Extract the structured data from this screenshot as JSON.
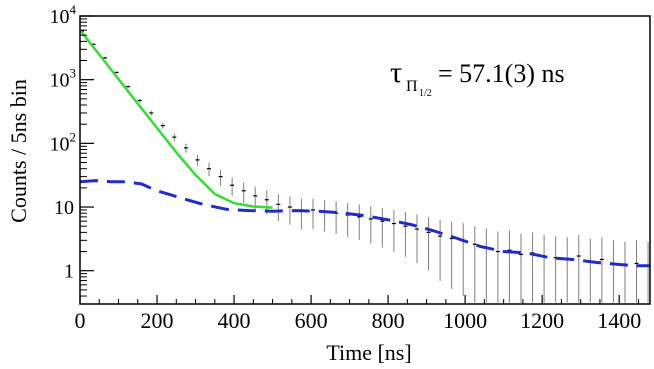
{
  "chart_data": {
    "type": "scatter",
    "xlabel": "Time [ns]",
    "ylabel": "Counts / 5ns bin",
    "xlim": [
      0,
      1480
    ],
    "ylim": [
      0.3,
      10000
    ],
    "y_scale": "log",
    "grid": false,
    "x_ticks": [
      {
        "value": 0,
        "label": "0"
      },
      {
        "value": 200,
        "label": "200"
      },
      {
        "value": 400,
        "label": "400"
      },
      {
        "value": 600,
        "label": "600"
      },
      {
        "value": 800,
        "label": "800"
      },
      {
        "value": 1000,
        "label": "1000"
      },
      {
        "value": 1200,
        "label": "1200"
      },
      {
        "value": 1400,
        "label": "1400"
      }
    ],
    "y_ticks": [
      {
        "value": 1,
        "label": "1"
      },
      {
        "value": 10,
        "label": "10"
      },
      {
        "value": 100,
        "label": "10",
        "exp": "2"
      },
      {
        "value": 1000,
        "label": "10",
        "exp": "3"
      },
      {
        "value": 10000,
        "label": "10",
        "exp": "4"
      }
    ],
    "annotation": {
      "tau": "τ",
      "sub_main": "Π",
      "sub_sub": "1/2",
      "value": "= 57.1(3) ns"
    },
    "series": [
      {
        "style": "data-histogram",
        "color": "#000000",
        "errorbar_color": "#7f7f7f",
        "x": [
          5,
          35,
          65,
          95,
          125,
          155,
          185,
          215,
          245,
          275,
          305,
          335,
          365,
          395,
          425,
          455,
          485,
          515,
          545,
          575,
          605,
          635,
          665,
          695,
          725,
          755,
          785,
          815,
          845,
          875,
          905,
          935,
          965,
          995,
          1025,
          1055,
          1085,
          1115,
          1145,
          1175,
          1205,
          1235,
          1265,
          1295,
          1325,
          1355,
          1385,
          1415,
          1445,
          1475
        ],
        "y": [
          5800,
          3600,
          2200,
          1300,
          780,
          470,
          300,
          190,
          125,
          85,
          55,
          40,
          30,
          22,
          18,
          15,
          13,
          11,
          10,
          9,
          9,
          8.5,
          8,
          7.5,
          7,
          6.5,
          6,
          5.5,
          5,
          4.5,
          4,
          3.5,
          3.2,
          3,
          2.6,
          2.3,
          2,
          2.1,
          1.8,
          1.9,
          1.7,
          1.6,
          1.5,
          1.7,
          1.4,
          1.5,
          1.3,
          1.2,
          1.3,
          1.2
        ]
      },
      {
        "style": "fit-solid",
        "color": "#33dd33",
        "x": [
          0,
          50,
          100,
          150,
          200,
          250,
          300,
          350,
          400,
          450,
          500
        ],
        "y": [
          6000,
          2480,
          1020,
          420,
          175,
          72,
          32,
          16,
          11.5,
          10.2,
          9.8
        ]
      },
      {
        "style": "background-dashed",
        "color": "#1f2bcc",
        "x": [
          0,
          40,
          80,
          120,
          160,
          200,
          260,
          320,
          380,
          440,
          500,
          560,
          620,
          680,
          740,
          800,
          860,
          920,
          980,
          1040,
          1100,
          1160,
          1220,
          1280,
          1340,
          1400,
          1440,
          1480
        ],
        "y": [
          25,
          26,
          25,
          25,
          23,
          18,
          14,
          11,
          9.2,
          8.8,
          8.6,
          8.8,
          8.6,
          8.1,
          7.3,
          6.3,
          5.3,
          4.2,
          3.2,
          2.4,
          2,
          1.9,
          1.6,
          1.5,
          1.35,
          1.25,
          1.2,
          1.2
        ]
      }
    ]
  }
}
